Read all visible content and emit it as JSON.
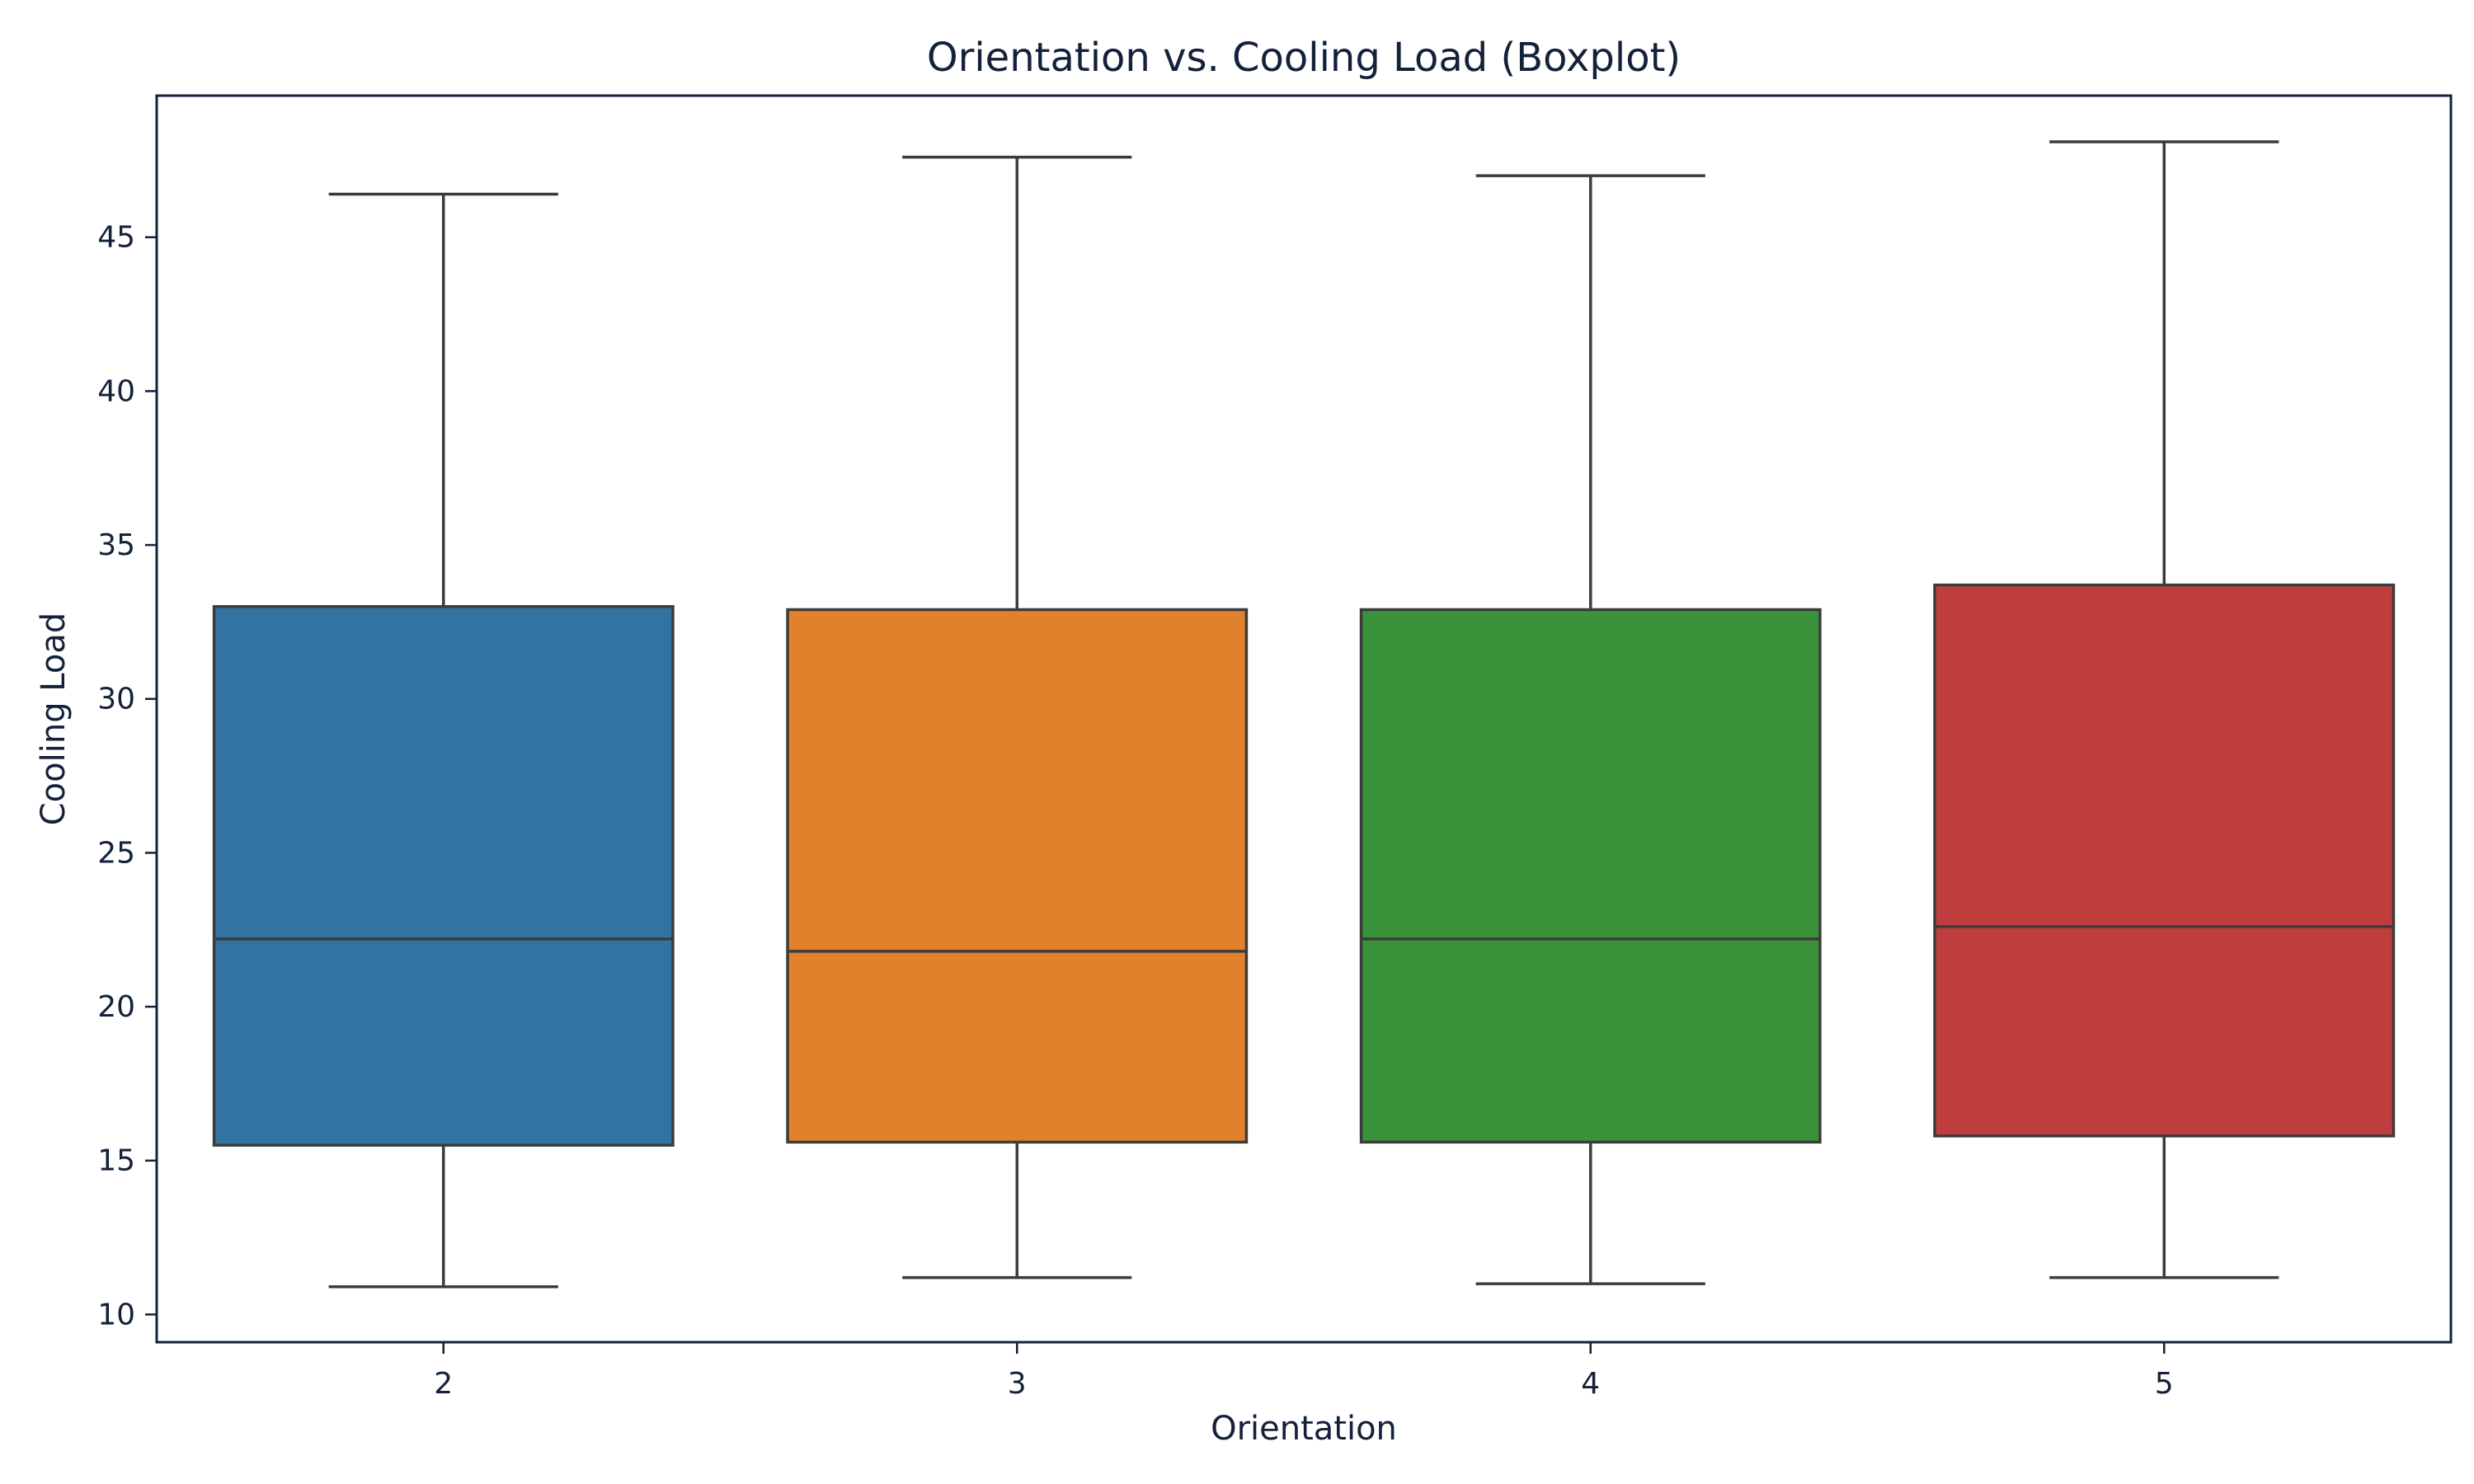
{
  "chart_data": {
    "type": "boxplot",
    "title": "Orientation vs. Cooling Load (Boxplot)",
    "xlabel": "Orientation",
    "ylabel": "Cooling Load",
    "categories": [
      "2",
      "3",
      "4",
      "5"
    ],
    "ylim": [
      9.1,
      49.6
    ],
    "yticks": [
      10,
      15,
      20,
      25,
      30,
      35,
      40,
      45
    ],
    "grid": false,
    "legend": "none",
    "boxes": [
      {
        "category": "2",
        "whisker_low": 10.9,
        "q1": 15.5,
        "median": 22.2,
        "q3": 33.0,
        "whisker_high": 46.4,
        "color": "#3274a1"
      },
      {
        "category": "3",
        "whisker_low": 11.2,
        "q1": 15.6,
        "median": 21.8,
        "q3": 32.9,
        "whisker_high": 47.6,
        "color": "#e1812c"
      },
      {
        "category": "4",
        "whisker_low": 11.0,
        "q1": 15.6,
        "median": 22.2,
        "q3": 32.9,
        "whisker_high": 47.0,
        "color": "#3a923a"
      },
      {
        "category": "5",
        "whisker_low": 11.2,
        "q1": 15.8,
        "median": 22.6,
        "q3": 33.7,
        "whisker_high": 48.1,
        "color": "#c03d3e"
      }
    ]
  }
}
